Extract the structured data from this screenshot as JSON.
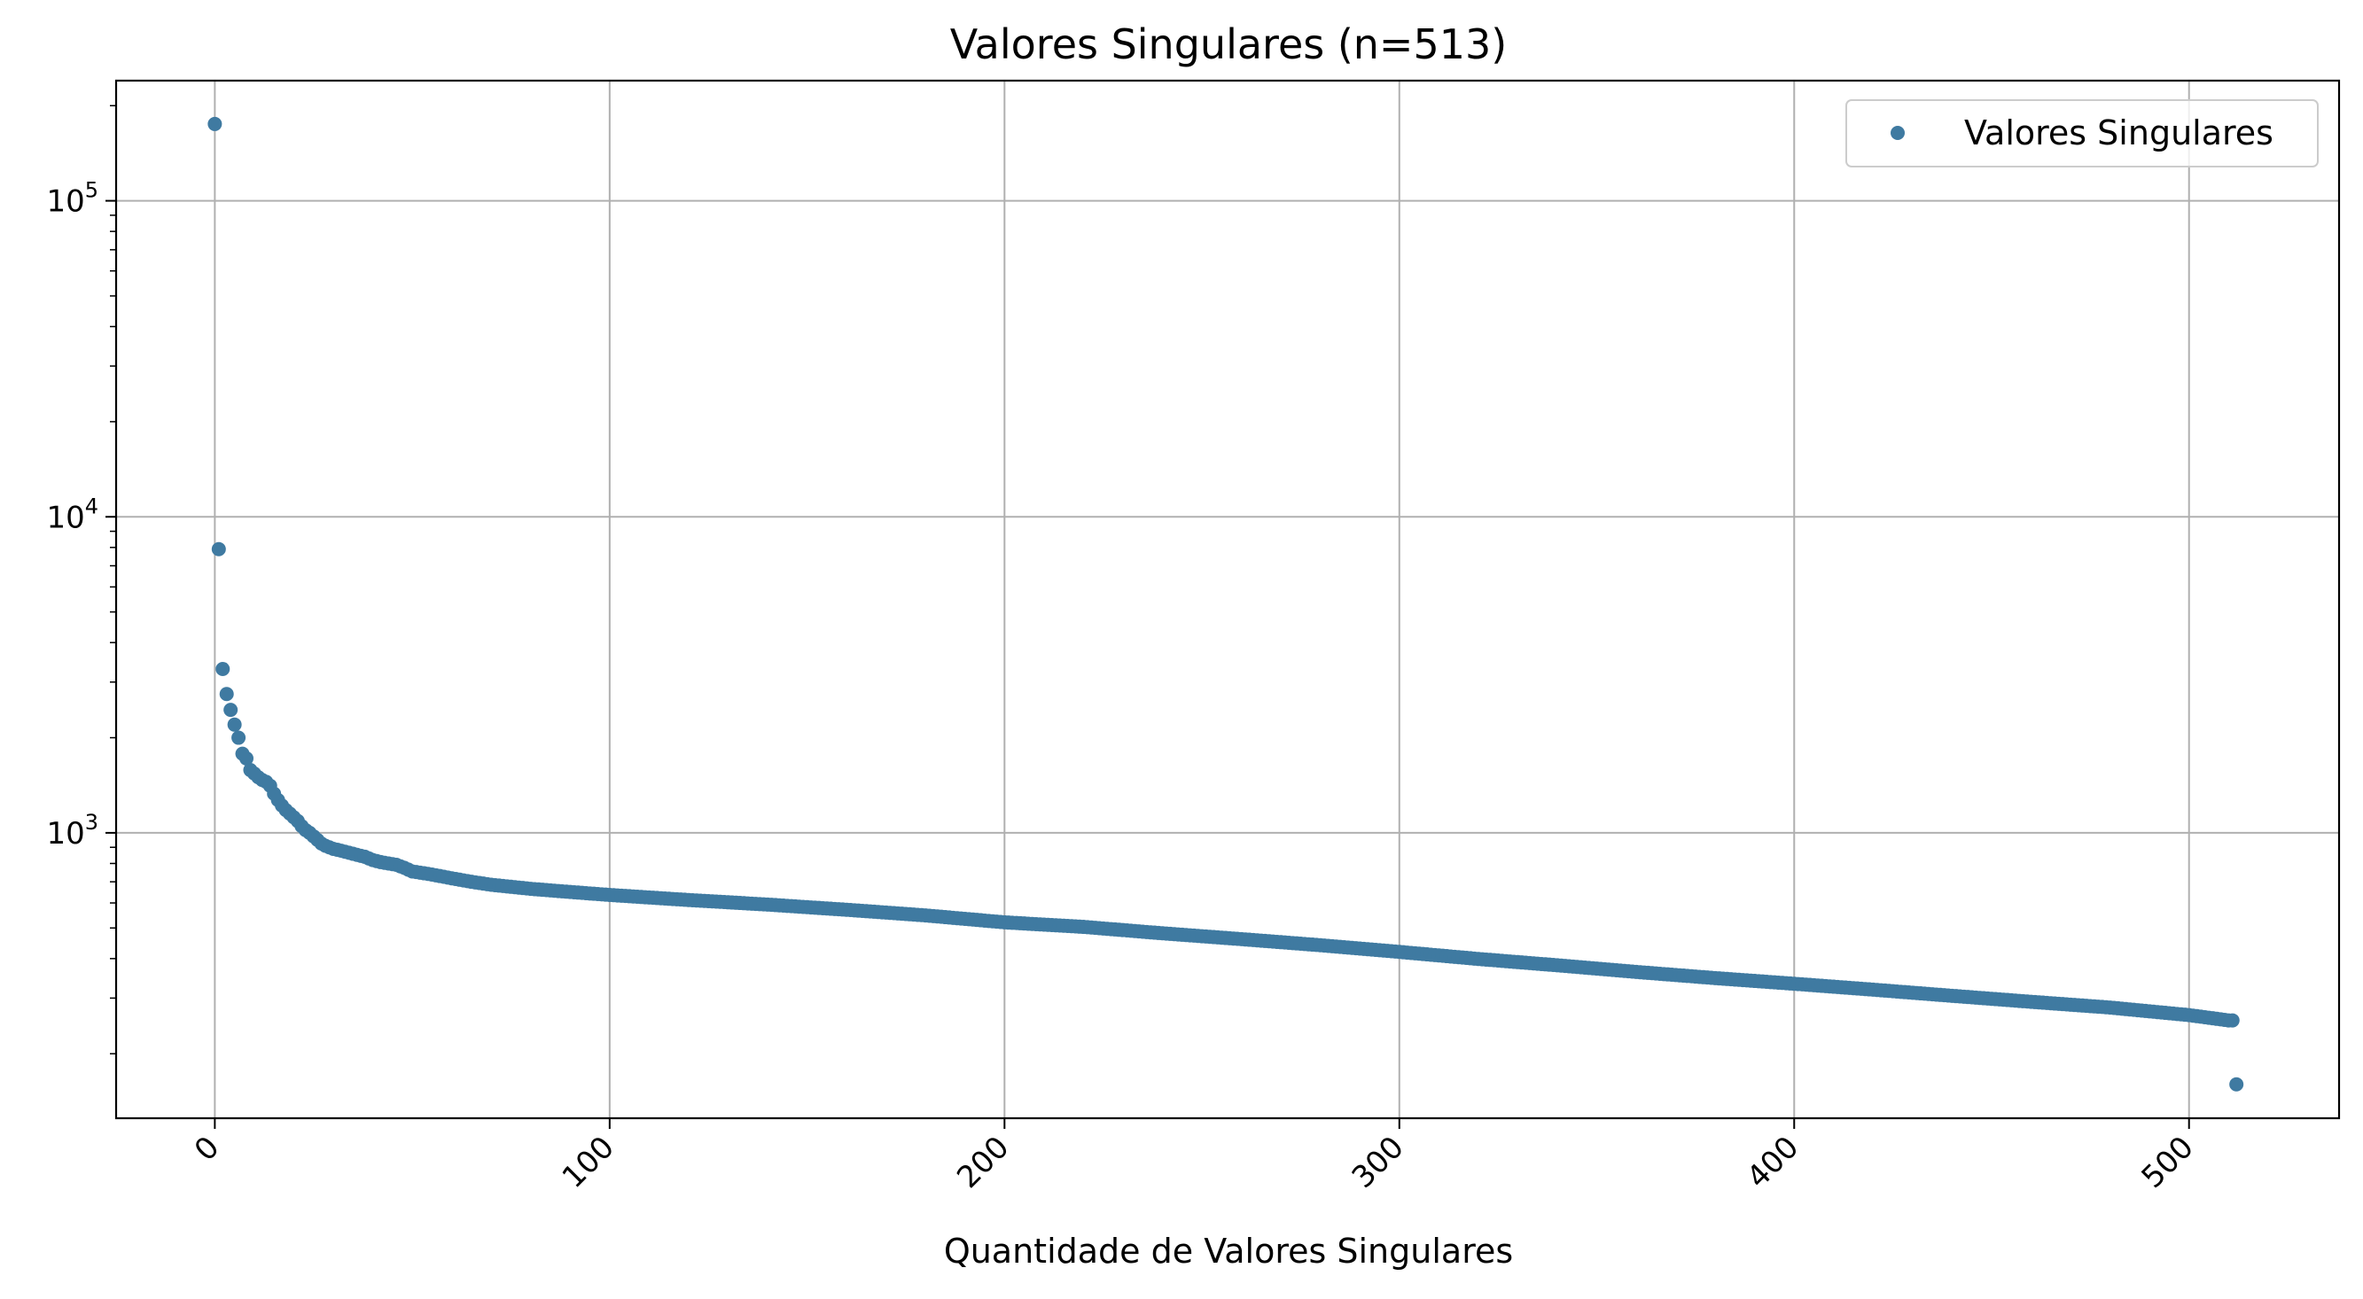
{
  "chart_data": {
    "type": "scatter",
    "title": "Valores Singulares (n=513)",
    "xlabel": "Quantidade de Valores Singulares",
    "ylabel": "",
    "y_scale": "log",
    "grid": true,
    "legend_position": "top-right",
    "xlim": [
      -25,
      538
    ],
    "ylim": [
      125,
      240000
    ],
    "x_ticks": [
      0,
      100,
      200,
      300,
      400,
      500
    ],
    "x_tick_labels": [
      "0",
      "100",
      "200",
      "300",
      "400",
      "500"
    ],
    "y_ticks": [
      {
        "value": 1000,
        "base": "10",
        "exp": "3"
      },
      {
        "value": 10000,
        "base": "10",
        "exp": "4"
      },
      {
        "value": 100000,
        "base": "10",
        "exp": "5"
      }
    ],
    "series": [
      {
        "name": "Valores Singulares",
        "color": "#3f7aa1",
        "n": 513,
        "points": [
          [
            0,
            175000
          ],
          [
            1,
            7900
          ],
          [
            2,
            3300
          ],
          [
            3,
            2750
          ],
          [
            4,
            2450
          ],
          [
            5,
            2200
          ],
          [
            6,
            2000
          ],
          [
            7,
            1780
          ],
          [
            8,
            1720
          ],
          [
            9,
            1580
          ],
          [
            10,
            1540
          ],
          [
            11,
            1500
          ],
          [
            12,
            1470
          ],
          [
            13,
            1450
          ],
          [
            14,
            1410
          ],
          [
            15,
            1330
          ],
          [
            16,
            1270
          ],
          [
            17,
            1220
          ],
          [
            18,
            1180
          ],
          [
            19,
            1150
          ],
          [
            20,
            1120
          ],
          [
            21,
            1090
          ],
          [
            22,
            1050
          ],
          [
            23,
            1020
          ],
          [
            24,
            1000
          ],
          [
            25,
            975
          ],
          [
            26,
            950
          ],
          [
            27,
            925
          ],
          [
            28,
            910
          ],
          [
            29,
            900
          ],
          [
            30,
            890
          ],
          [
            32,
            878
          ],
          [
            34,
            865
          ],
          [
            36,
            852
          ],
          [
            38,
            840
          ],
          [
            40,
            820
          ],
          [
            42,
            808
          ],
          [
            44,
            800
          ],
          [
            46,
            792
          ],
          [
            48,
            775
          ],
          [
            50,
            755
          ],
          [
            55,
            738
          ],
          [
            60,
            718
          ],
          [
            65,
            700
          ],
          [
            70,
            685
          ],
          [
            80,
            665
          ],
          [
            90,
            650
          ],
          [
            100,
            636
          ],
          [
            120,
            613
          ],
          [
            140,
            593
          ],
          [
            160,
            571
          ],
          [
            180,
            548
          ],
          [
            200,
            521
          ],
          [
            220,
            504
          ],
          [
            240,
            481
          ],
          [
            260,
            461
          ],
          [
            280,
            441
          ],
          [
            300,
            420
          ],
          [
            320,
            399
          ],
          [
            340,
            381
          ],
          [
            360,
            363
          ],
          [
            380,
            347
          ],
          [
            400,
            333
          ],
          [
            420,
            319
          ],
          [
            440,
            305
          ],
          [
            460,
            292
          ],
          [
            480,
            280
          ],
          [
            500,
            265
          ],
          [
            510,
            255
          ],
          [
            511,
            255
          ],
          [
            512,
            160
          ]
        ]
      }
    ]
  }
}
